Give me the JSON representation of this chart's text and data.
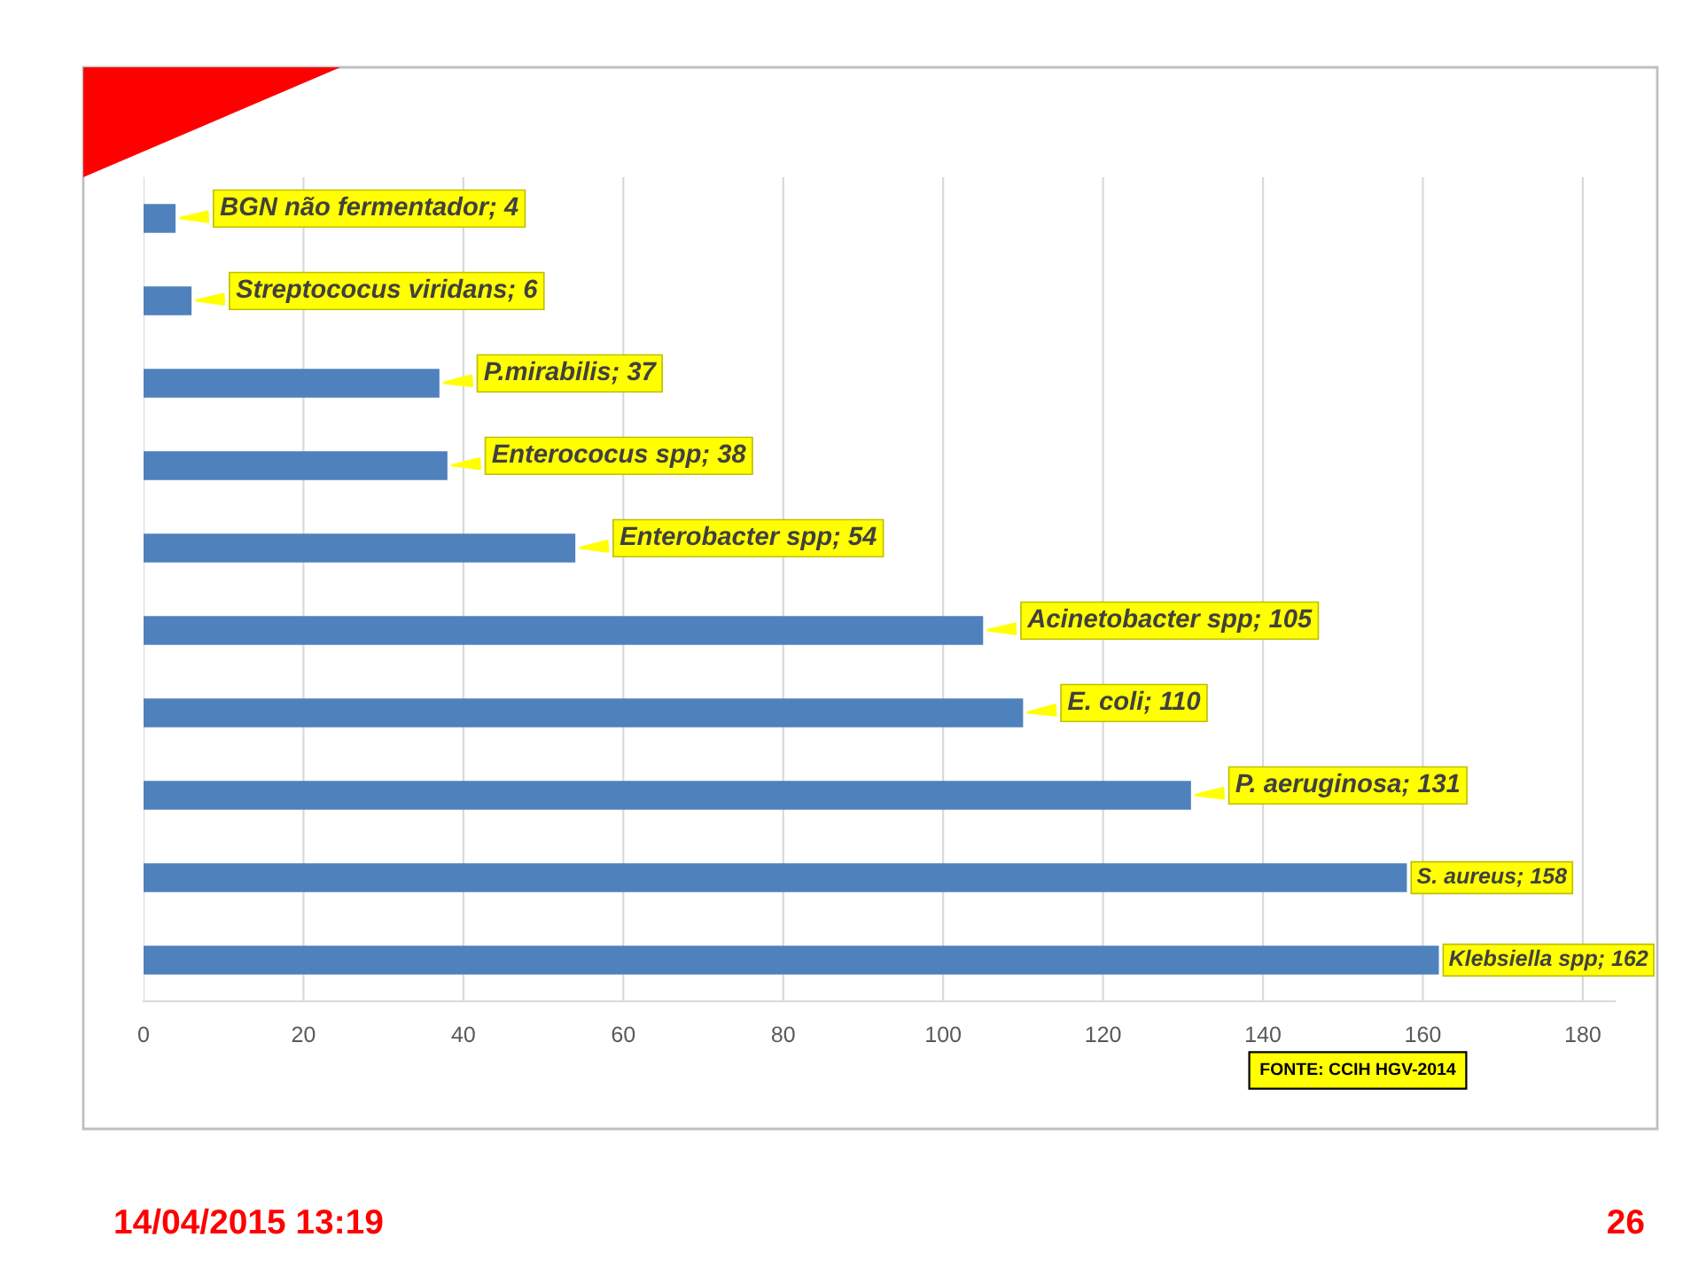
{
  "chart_data": {
    "type": "bar",
    "orientation": "horizontal",
    "categories": [
      null,
      null,
      null,
      null,
      null,
      null,
      null,
      null,
      null,
      null
    ],
    "values": [
      4,
      6,
      37,
      38,
      54,
      105,
      110,
      131,
      158,
      162
    ],
    "color": "#4f81bd",
    "value_labels": [
      "BGN não fermentador; 4",
      "Streptococus viridans; 6",
      "P.mirabilis; 37",
      "Enterococus spp; 38",
      "Enterobacter spp; 54",
      "Acinetobacter spp; 105",
      "E. coli; 110",
      "P. aeruginosa; 131",
      "S. aureus; 158",
      "Klebsiella spp; 162"
    ],
    "xlim": [
      0,
      184
    ],
    "xticks": [
      0,
      20,
      40,
      60,
      80,
      100,
      120,
      140,
      160,
      180
    ],
    "grid": "x",
    "tick_labels": "x",
    "annotations": [
      "FONTE: CCIH HGV-2014",
      "14/04/2015 13:19",
      "26"
    ]
  }
}
